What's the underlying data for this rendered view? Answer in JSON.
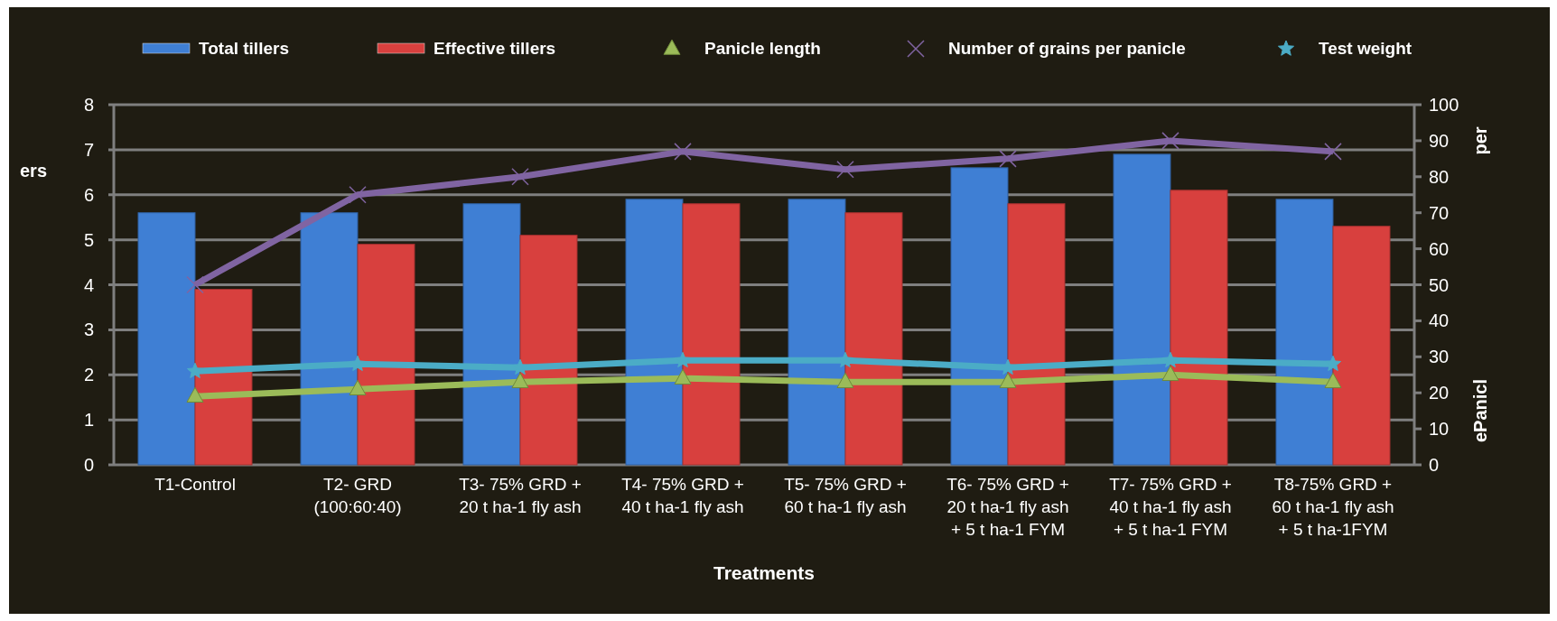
{
  "chart_data": {
    "type": "bar",
    "xlabel": "Treatments",
    "ylabel": "ers",
    "y2label": "ePanicl",
    "annotations": [
      "per"
    ],
    "categories": [
      "T1-Control",
      "T2- GRD\n(100:60:40)",
      "T3- 75% GRD +\n20 t ha-1 fly ash",
      "T4- 75% GRD +\n40 t ha-1 fly ash",
      "T5- 75% GRD +\n60 t ha-1 fly ash",
      "T6- 75% GRD +\n20 t ha-1 fly ash\n+ 5 t ha-1 FYM",
      "T7- 75% GRD +\n40 t ha-1 fly ash\n+ 5 t ha-1 FYM",
      "T8-75% GRD +\n60 t ha-1 fly ash\n+ 5 t ha-1FYM"
    ],
    "series": [
      {
        "name": "Total tillers",
        "color": "#3f7fd4",
        "values": [
          5.6,
          5.6,
          5.8,
          5.9,
          5.9,
          6.6,
          6.9,
          5.9
        ]
      },
      {
        "name": "Effective tillers",
        "color": "#d8403e",
        "values": [
          3.9,
          4.9,
          5.1,
          5.8,
          5.6,
          5.8,
          6.1,
          5.3
        ]
      },
      {
        "name": "Panicle length",
        "type": "line",
        "axis": "y2",
        "marker": "triangle",
        "color": "#9bbb59",
        "values": [
          19,
          21,
          23,
          24,
          23,
          23,
          25,
          23
        ]
      },
      {
        "name": "Number of grains per panicle",
        "type": "line",
        "axis": "y2",
        "marker": "cross",
        "color": "#8064a2",
        "values": [
          50,
          75,
          80,
          87,
          82,
          85,
          90,
          87
        ]
      },
      {
        "name": "Test weight",
        "type": "line",
        "axis": "y2",
        "marker": "star",
        "color": "#4bacc6",
        "values": [
          26,
          28,
          27,
          29,
          29,
          27,
          29,
          28
        ]
      }
    ],
    "ylim": [
      0,
      8
    ],
    "yticks": [
      0,
      1,
      2,
      3,
      4,
      5,
      6,
      7,
      8
    ],
    "y2lim": [
      0,
      100
    ],
    "y2ticks": [
      0,
      10,
      20,
      30,
      40,
      50,
      60,
      70,
      80,
      90,
      100
    ],
    "grid": "y",
    "legend": "top"
  }
}
